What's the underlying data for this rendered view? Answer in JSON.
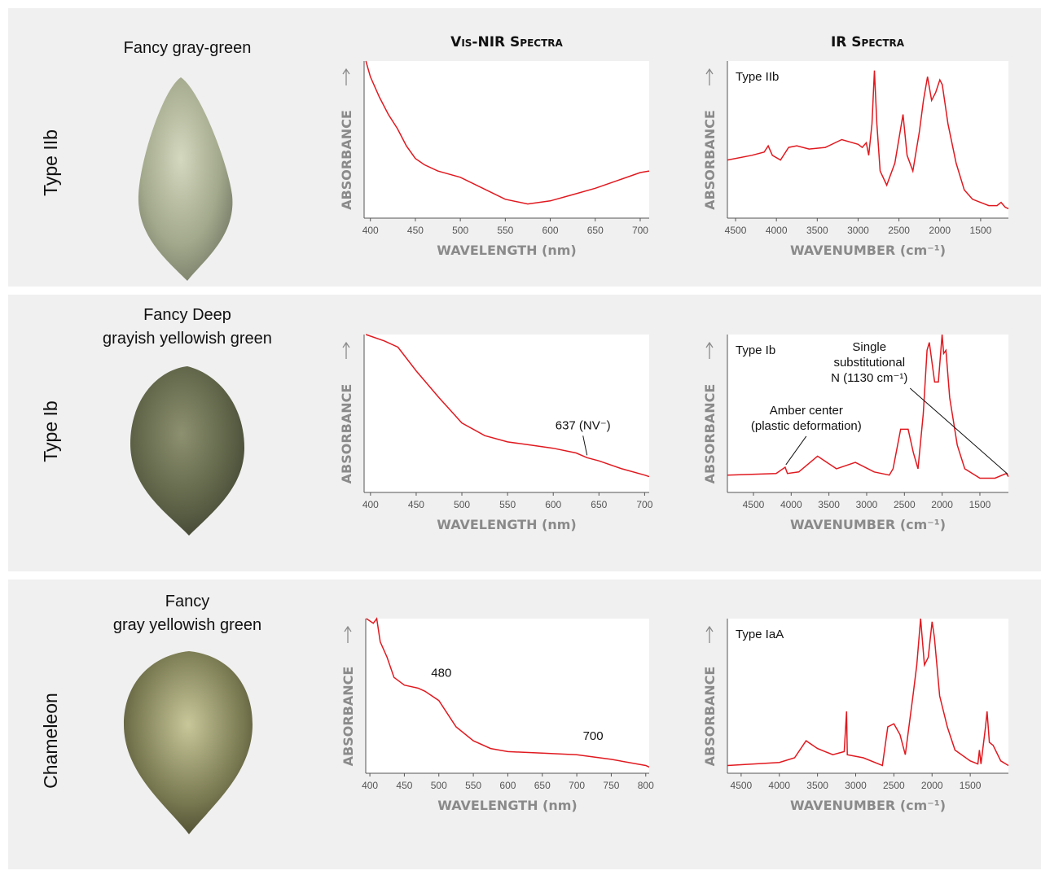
{
  "columns": [
    "Vis-NIR Spectra",
    "IR Spectra"
  ],
  "rows": [
    {
      "label": "Type IIb",
      "gem": [
        "Fancy gray-green"
      ]
    },
    {
      "label": "Type Ib",
      "gem": [
        "Fancy Deep",
        "grayish yellowish green"
      ]
    },
    {
      "label": "Chameleon",
      "gem": [
        "Fancy",
        "gray yellowish green"
      ]
    }
  ],
  "chart_data": [
    {
      "type": "line",
      "xlabel": "WAVELENGTH (nm)",
      "ylabel": "ABSORBANCE",
      "color": "#e0191f",
      "xlim": [
        393,
        710
      ],
      "xticks": [
        400,
        450,
        500,
        550,
        600,
        650,
        700
      ],
      "ylim": [
        0,
        100
      ],
      "x": [
        395,
        400,
        410,
        420,
        430,
        440,
        450,
        460,
        475,
        500,
        525,
        550,
        575,
        600,
        625,
        650,
        675,
        700,
        710
      ],
      "values": [
        100,
        90,
        77,
        66,
        57,
        46,
        38,
        34,
        30,
        26,
        19,
        12,
        9,
        11,
        15,
        19,
        24,
        29,
        30
      ]
    },
    {
      "type": "line",
      "xlabel": "WAVENUMBER (cm⁻¹)",
      "ylabel": "ABSORBANCE",
      "color": "#e0191f",
      "label": "Type IIb",
      "xlim": [
        4600,
        1160
      ],
      "xticks": [
        4500,
        4000,
        3500,
        3000,
        2500,
        2000,
        1500
      ],
      "ylim": [
        0,
        100
      ],
      "x": [
        4600,
        4300,
        4150,
        4100,
        4050,
        3950,
        3850,
        3750,
        3600,
        3400,
        3200,
        3000,
        2950,
        2900,
        2870,
        2830,
        2800,
        2770,
        2730,
        2650,
        2550,
        2450,
        2400,
        2330,
        2250,
        2200,
        2150,
        2100,
        2050,
        2000,
        1970,
        1900,
        1800,
        1700,
        1600,
        1400,
        1300,
        1250,
        1200,
        1160
      ],
      "values": [
        37,
        40,
        42,
        46,
        40,
        37,
        45,
        46,
        44,
        45,
        50,
        47,
        45,
        48,
        40,
        60,
        94,
        60,
        30,
        21,
        35,
        66,
        40,
        30,
        55,
        75,
        90,
        75,
        80,
        88,
        85,
        60,
        35,
        18,
        12,
        8,
        8,
        10,
        7,
        6
      ]
    },
    {
      "type": "line",
      "xlabel": "WAVELENGTH (nm)",
      "ylabel": "ABSORBANCE",
      "color": "#e0191f",
      "xlim": [
        393,
        705
      ],
      "xticks": [
        400,
        450,
        500,
        550,
        600,
        650,
        700
      ],
      "ylim": [
        0,
        100
      ],
      "x": [
        395,
        415,
        430,
        450,
        475,
        500,
        525,
        550,
        575,
        600,
        625,
        637,
        650,
        675,
        700,
        705
      ],
      "values": [
        100,
        96,
        92,
        77,
        60,
        44,
        36,
        32,
        30,
        28,
        25,
        22,
        20,
        15,
        11,
        10
      ],
      "annotations": [
        {
          "lines": [
            "637 (NV⁻)"
          ],
          "x": 637
        }
      ]
    },
    {
      "type": "line",
      "xlabel": "WAVENUMBER (cm⁻¹)",
      "ylabel": "ABSORBANCE",
      "color": "#e0191f",
      "label": "Type Ib",
      "xlim": [
        4845,
        1122
      ],
      "xticks": [
        4500,
        4000,
        3500,
        3000,
        2500,
        2000,
        1500
      ],
      "ylim": [
        0,
        100
      ],
      "x": [
        4845,
        4200,
        4080,
        4050,
        3900,
        3650,
        3400,
        3150,
        2900,
        2700,
        2650,
        2550,
        2450,
        2380,
        2320,
        2250,
        2200,
        2170,
        2100,
        2050,
        2000,
        1980,
        1950,
        1900,
        1800,
        1700,
        1500,
        1300,
        1150,
        1122
      ],
      "values": [
        11,
        12,
        16,
        12,
        13,
        23,
        15,
        19,
        13,
        11,
        15,
        40,
        40,
        25,
        15,
        50,
        90,
        95,
        70,
        70,
        100,
        88,
        90,
        60,
        30,
        15,
        9,
        9,
        12,
        10
      ],
      "annotations": [
        {
          "lines": [
            "Amber center",
            "(plastic deformation)"
          ],
          "x": 4070
        },
        {
          "lines": [
            "Single",
            "substitutional",
            "N (1130 cm⁻¹)"
          ],
          "x": 1130
        }
      ]
    },
    {
      "type": "line",
      "xlabel": "WAVELENGTH (nm)",
      "ylabel": "ABSORBANCE",
      "color": "#e0191f",
      "xlim": [
        394,
        805
      ],
      "xticks": [
        400,
        450,
        500,
        550,
        600,
        650,
        700,
        750,
        800
      ],
      "ylim": [
        0,
        100
      ],
      "x": [
        395,
        405,
        410,
        415,
        425,
        435,
        450,
        470,
        480,
        500,
        525,
        550,
        575,
        600,
        650,
        700,
        750,
        800,
        805
      ],
      "values": [
        100,
        97,
        100,
        85,
        75,
        62,
        57,
        55,
        53,
        47,
        30,
        21,
        16,
        14,
        13,
        12,
        9,
        5,
        4
      ],
      "annotations": [
        {
          "lines": [
            "480"
          ],
          "x": 480
        },
        {
          "lines": [
            "700"
          ],
          "x": 700
        }
      ]
    },
    {
      "type": "line",
      "xlabel": "WAVENUMBER (cm⁻¹)",
      "ylabel": "ABSORBANCE",
      "color": "#e0191f",
      "label": "Type IaA",
      "xlim": [
        4680,
        1000
      ],
      "xticks": [
        4500,
        4000,
        3500,
        3000,
        2500,
        2000,
        1500
      ],
      "ylim": [
        0,
        100
      ],
      "x": [
        4680,
        4000,
        3800,
        3650,
        3500,
        3300,
        3150,
        3120,
        3110,
        2900,
        2650,
        2580,
        2500,
        2420,
        2350,
        2250,
        2200,
        2150,
        2100,
        2050,
        2000,
        1970,
        1900,
        1800,
        1700,
        1500,
        1400,
        1380,
        1360,
        1300,
        1280,
        1250,
        1200,
        1100,
        1000
      ],
      "values": [
        5,
        7,
        10,
        21,
        16,
        12,
        14,
        40,
        12,
        10,
        5,
        30,
        32,
        25,
        12,
        50,
        70,
        100,
        70,
        75,
        98,
        88,
        50,
        30,
        15,
        8,
        6,
        15,
        6,
        30,
        40,
        20,
        18,
        8,
        5
      ]
    }
  ]
}
